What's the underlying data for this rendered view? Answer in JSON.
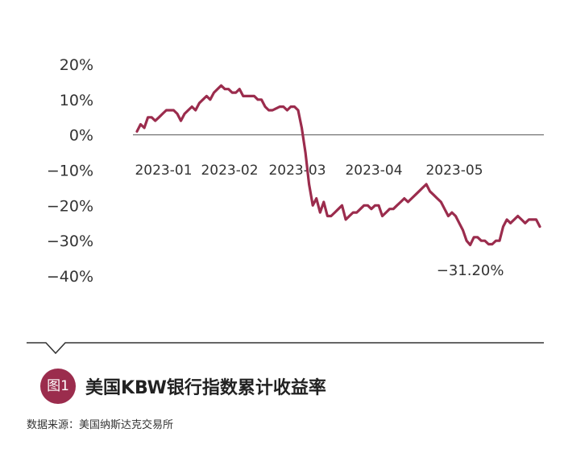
{
  "figure": {
    "badge_label": "图1",
    "title": "美国KBW银行指数累计收益率",
    "source": "数据来源：美国纳斯达克交易所"
  },
  "colors": {
    "accent": "#9b2c4d",
    "badge": "#9b2c4d",
    "zero_line": "#555555",
    "divider": "#333333"
  },
  "chart_data": {
    "type": "line",
    "title": "",
    "xlabel": "",
    "ylabel": "",
    "ylim": [
      -40,
      20
    ],
    "yticks": [
      20,
      10,
      0,
      -10,
      -20,
      -30,
      -40
    ],
    "ytick_labels": [
      "20%",
      "10%",
      "0%",
      "−10%",
      "−20%",
      "−30%",
      "−40%"
    ],
    "xtick_labels": [
      "2023-01",
      "2023-02",
      "2023-03",
      "2023-04",
      "2023-05"
    ],
    "grid": false,
    "legend": "none",
    "annotation": {
      "label": "−31.20%",
      "value": -31.2
    },
    "series": [
      {
        "values": [
          1,
          3,
          2,
          5,
          5,
          4,
          5,
          6,
          7,
          7,
          7,
          6,
          4,
          6,
          7,
          8,
          7,
          9,
          10,
          11,
          10,
          12,
          13,
          14,
          13,
          13,
          12,
          12,
          13,
          11,
          11,
          11,
          11,
          10,
          10,
          8,
          7,
          7,
          7.5,
          8,
          8,
          7,
          8,
          8,
          7,
          2,
          -5,
          -14,
          -20,
          -18,
          -22,
          -19,
          -23,
          -23,
          -22,
          -21,
          -20,
          -24,
          -23,
          -22,
          -22,
          -21,
          -20,
          -20,
          -21,
          -20,
          -20,
          -23,
          -22,
          -21,
          -21,
          -20,
          -19,
          -18,
          -19,
          -18,
          -17,
          -16,
          -15,
          -14,
          -16,
          -17,
          -18,
          -19,
          -21,
          -23,
          -22,
          -23,
          -25,
          -27,
          -30,
          -31.2,
          -29,
          -29,
          -30,
          -30,
          -31,
          -31,
          -30,
          -30,
          -26,
          -24,
          -25,
          -24,
          -23,
          -24,
          -25,
          -24,
          -24,
          -24,
          -26
        ]
      }
    ]
  }
}
